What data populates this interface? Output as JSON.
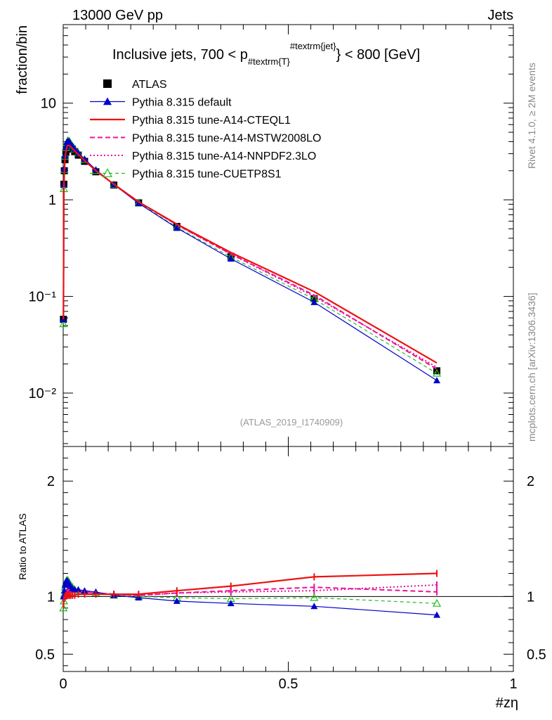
{
  "header": {
    "left": "13000 GeV pp",
    "right": "Jets"
  },
  "chart_data": {
    "type": "line",
    "title": "Inclusive jets, 700 < p",
    "title_sub": "#textrm{T}",
    "title_sup": "#textrm{jet}",
    "title_tail": "} < 800 [GeV]",
    "xlabel": "#zη",
    "ylabel": "fraction/bin",
    "ratio_ylabel": "Ratio to ATLAS",
    "analysis_id": "(ATLAS_2019_I1740909)",
    "side_label_1": "Rivet 4.1.0, ≥ 2M events",
    "side_label_2": "mcplots.cern.ch [arXiv:1306.3436]",
    "x_ticks": [
      "0",
      "0.5",
      "1"
    ],
    "y_ticks": [
      "10⁻²",
      "10⁻¹",
      "1",
      "10"
    ],
    "ratio_ticks": [
      "0.5",
      "1",
      "2"
    ],
    "x_range": [
      0,
      1
    ],
    "y_range_log": [
      0.0028,
      65
    ],
    "ratio_range": [
      0.35,
      2.3
    ],
    "x": [
      0.0005,
      0.0015,
      0.0025,
      0.004,
      0.006,
      0.008,
      0.0105,
      0.0135,
      0.0165,
      0.0205,
      0.0255,
      0.0335,
      0.0475,
      0.0725,
      0.1125,
      0.1675,
      0.2525,
      0.3725,
      0.5575,
      0.83
    ],
    "series": [
      {
        "name": "ATLAS",
        "color": "#000000",
        "values": [
          0.058,
          1.45,
          2.0,
          2.6,
          3.1,
          3.45,
          3.6,
          3.6,
          3.5,
          3.35,
          3.15,
          2.9,
          2.5,
          1.95,
          1.42,
          0.93,
          0.53,
          0.26,
          0.095,
          0.017
        ],
        "ratio": [
          1,
          1,
          1,
          1,
          1,
          1,
          1,
          1,
          1,
          1,
          1,
          1,
          1,
          1,
          1,
          1,
          1,
          1,
          1,
          1
        ]
      },
      {
        "name": "Pythia 8.315 default",
        "color": "#0000cc",
        "values": [
          0.058,
          1.45,
          2.1,
          2.85,
          3.5,
          3.95,
          4.05,
          4.0,
          3.8,
          3.6,
          3.35,
          3.05,
          2.65,
          2.05,
          1.44,
          0.92,
          0.51,
          0.245,
          0.087,
          0.0135
        ],
        "ratio": [
          1.0,
          1.0,
          1.05,
          1.1,
          1.13,
          1.14,
          1.13,
          1.11,
          1.09,
          1.07,
          1.06,
          1.06,
          1.05,
          1.04,
          1.01,
          0.99,
          0.96,
          0.94,
          0.915,
          0.84
        ]
      },
      {
        "name": "Pythia 8.315 tune-A14-CTEQL1",
        "color": "#ee1111",
        "values": [
          0.058,
          1.3,
          1.95,
          2.6,
          3.15,
          3.5,
          3.65,
          3.65,
          3.55,
          3.4,
          3.2,
          2.95,
          2.55,
          2.0,
          1.45,
          0.95,
          0.56,
          0.285,
          0.112,
          0.0205
        ],
        "ratio": [
          0.93,
          0.98,
          0.98,
          1.0,
          1.01,
          1.01,
          1.01,
          1.01,
          1.01,
          1.01,
          1.01,
          1.02,
          1.02,
          1.02,
          1.02,
          1.02,
          1.05,
          1.09,
          1.17,
          1.2
        ]
      },
      {
        "name": "Pythia 8.315 tune-A14-MSTW2008LO",
        "color": "#ee1199",
        "values": [
          0.058,
          1.35,
          2.0,
          2.65,
          3.2,
          3.55,
          3.7,
          3.7,
          3.6,
          3.45,
          3.25,
          3.0,
          2.6,
          2.0,
          1.45,
          0.95,
          0.55,
          0.275,
          0.103,
          0.0177
        ],
        "ratio": [
          0.95,
          1.0,
          1.0,
          1.02,
          1.03,
          1.03,
          1.04,
          1.04,
          1.04,
          1.04,
          1.04,
          1.04,
          1.04,
          1.03,
          1.02,
          1.01,
          1.03,
          1.05,
          1.08,
          1.04
        ]
      },
      {
        "name": "Pythia 8.315 tune-A14-NNPDF2.3LO",
        "color": "#ee1199",
        "values": [
          0.058,
          1.35,
          2.0,
          2.65,
          3.2,
          3.55,
          3.7,
          3.7,
          3.6,
          3.45,
          3.25,
          3.0,
          2.6,
          2.0,
          1.45,
          0.95,
          0.55,
          0.274,
          0.1,
          0.0185
        ],
        "ratio": [
          0.96,
          1.0,
          1.0,
          1.02,
          1.03,
          1.04,
          1.04,
          1.04,
          1.04,
          1.04,
          1.04,
          1.04,
          1.04,
          1.03,
          1.02,
          1.01,
          1.03,
          1.04,
          1.05,
          1.1
        ]
      },
      {
        "name": "Pythia 8.315 tune-CUETP8S1",
        "color": "#22bb22",
        "values": [
          0.052,
          1.3,
          2.05,
          2.8,
          3.45,
          3.9,
          4.1,
          4.05,
          3.85,
          3.6,
          3.35,
          3.05,
          2.6,
          2.0,
          1.43,
          0.93,
          0.52,
          0.255,
          0.094,
          0.016
        ],
        "ratio": [
          0.9,
          0.96,
          1.02,
          1.08,
          1.12,
          1.14,
          1.14,
          1.12,
          1.1,
          1.08,
          1.06,
          1.05,
          1.04,
          1.03,
          1.01,
          1.0,
          0.99,
          0.98,
          0.99,
          0.94
        ]
      }
    ]
  }
}
